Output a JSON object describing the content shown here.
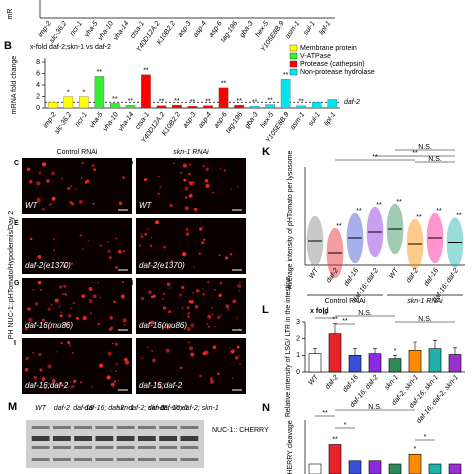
{
  "panel_a": {
    "axis_label": "mR",
    "categories": [
      "imp-2",
      "slc-36.2",
      "ncr-1",
      "vha-5",
      "vha-10",
      "vha-14",
      "ctsa-1",
      "Y40D12A.2",
      "K10B2.2",
      "asp-3",
      "asp-4",
      "asp-6",
      "tag-196",
      "gba-3",
      "hex-5",
      "Y105E8B.9",
      "asm-1",
      "sul-1",
      "lipl-1"
    ]
  },
  "panel_b": {
    "letter": "B",
    "type": "bar",
    "subtitle": "x-fold daf-2;skn-1 vs daf-2",
    "y_label": "mRNA fold change",
    "reference_label": "daf-2",
    "categories": [
      "imp-2",
      "slc-36.2",
      "ncr-1",
      "vha-5",
      "vha-10",
      "vha-14",
      "ctsa-1",
      "Y40D12A.2",
      "K10B2.2",
      "asp-3",
      "asp-4",
      "asp-6",
      "tag-196",
      "gba-3",
      "hex-5",
      "Y105E8B.9",
      "asm-1",
      "sul-1",
      "lipl-1"
    ],
    "values": [
      1,
      2,
      2,
      5.5,
      0.8,
      0.5,
      5.8,
      0.4,
      0.5,
      0.3,
      0.4,
      3.5,
      0.5,
      0.3,
      0.6,
      5,
      0.4,
      1,
      1.5
    ],
    "colors": [
      "#ffff00",
      "#ffff00",
      "#ffff00",
      "#33ee33",
      "#33ee33",
      "#33ee33",
      "#ff0000",
      "#ff0000",
      "#ff0000",
      "#ff0000",
      "#ff0000",
      "#ff0000",
      "#ff0000",
      "#00e5ee",
      "#00e5ee",
      "#00e5ee",
      "#00e5ee",
      "#00e5ee",
      "#00e5ee"
    ],
    "significance": [
      null,
      "*",
      "*",
      "**",
      "**",
      "**",
      "**",
      "**",
      "**",
      "**",
      "**",
      "**",
      "**",
      "**",
      "**",
      "**",
      "**",
      null,
      null
    ],
    "ylim": [
      0,
      8
    ],
    "yticks": [
      0,
      2,
      4,
      6,
      8
    ],
    "legend": [
      {
        "name": "Membrane protein",
        "color": "#ffff00"
      },
      {
        "name": "V-ATPase",
        "color": "#33ee33"
      },
      {
        "name": "Protease (cathepsin)",
        "color": "#ff0000"
      },
      {
        "name": "Non-protease hydrolase",
        "color": "#00e5ee"
      }
    ]
  },
  "image_panels": {
    "column_headers": [
      "Control RNAi",
      "skn-1 RNAi"
    ],
    "side_label": "PH NUC-1::pHTomato/Hypodermis/Day 2",
    "panels": [
      {
        "letter": "C",
        "genotype": "WT"
      },
      {
        "letter": "D",
        "genotype": "WT"
      },
      {
        "letter": "E",
        "genotype": "daf-2(e1370)"
      },
      {
        "letter": "F",
        "genotype": "daf-2(e1370)"
      },
      {
        "letter": "G",
        "genotype": "daf-16(mu86)"
      },
      {
        "letter": "H",
        "genotype": "daf-16(mu86)"
      },
      {
        "letter": "I",
        "genotype": "daf-16;daf-2"
      },
      {
        "letter": "J",
        "genotype": "daf-16;daf-2"
      }
    ]
  },
  "panel_k": {
    "letter": "K",
    "y_label": "Average intensity of pHTomato per lysosome",
    "categories": [
      "WT",
      "daf-2",
      "daf-16",
      "daf-16; daf-2",
      "WT",
      "daf-2",
      "daf-16",
      "daf-16; daf-2"
    ],
    "group_labels": [
      "Control RNAi",
      "skn-1 RNAi"
    ],
    "means": [
      80,
      40,
      90,
      110,
      120,
      70,
      90,
      75
    ],
    "colors": [
      "#888888",
      "#e8232a",
      "#3a4fd8",
      "#8a2be2",
      "#2e8b57",
      "#ff8c00",
      "#ff1493",
      "#20b2aa"
    ],
    "ylim": [
      0,
      300
    ],
    "significance": [
      null,
      "**",
      "**",
      "**",
      "**",
      "**",
      "**",
      "**"
    ],
    "brackets": [
      "**",
      "**",
      "N.S.",
      "N.S."
    ]
  },
  "panel_l": {
    "letter": "L",
    "subtitle": "x fold",
    "y_label": "Relative intensity of LSG/ LTR in the intestine",
    "categories": [
      "WT",
      "daf-2",
      "daf-16",
      "daf-16; daf-2",
      "skn-1",
      "daf-2; skn-1",
      "daf-16; skn-1",
      "daf-16; daf-2; skn-1"
    ],
    "values": [
      1.1,
      2.3,
      1.0,
      1.1,
      0.8,
      1.3,
      1.4,
      1.05
    ],
    "errors": [
      0.3,
      0.6,
      0.4,
      0.3,
      0.2,
      0.5,
      0.5,
      0.4
    ],
    "colors": [
      "#ffffff",
      "#e8232a",
      "#3a4fd8",
      "#8a2be2",
      "#2e8b57",
      "#ff8c00",
      "#20b2aa",
      "#9932cc"
    ],
    "ylim": [
      0,
      3
    ],
    "yticks": [
      0,
      1,
      2,
      3
    ],
    "significance": [
      null,
      "**",
      null,
      null,
      "*",
      null,
      null,
      null
    ],
    "brackets": [
      "**",
      "**",
      "N.S.",
      "N.S."
    ]
  },
  "panel_m": {
    "letter": "M",
    "lanes": [
      "WT",
      "daf-2",
      "daf-16",
      "daf-16; daf-2",
      "skn-1",
      "daf-2; skn-1",
      "daf-16; skn-1",
      "daf-16;daf-2; skn-1"
    ],
    "band_label": "NUC-1:: CHERRY"
  },
  "panel_n": {
    "letter": "N",
    "y_label": "CHERRY cleavage",
    "values": [
      40,
      70,
      45,
      45,
      40,
      55,
      40,
      40
    ],
    "colors": [
      "#ffffff",
      "#e8232a",
      "#3a4fd8",
      "#8a2be2",
      "#2e8b57",
      "#ff8c00",
      "#20b2aa",
      "#9932cc"
    ],
    "ylim": [
      0,
      100
    ],
    "significance": [
      null,
      "**",
      null,
      null,
      null,
      "*",
      null,
      null
    ],
    "brackets": [
      "**",
      "*",
      "N.S.",
      "*"
    ]
  }
}
